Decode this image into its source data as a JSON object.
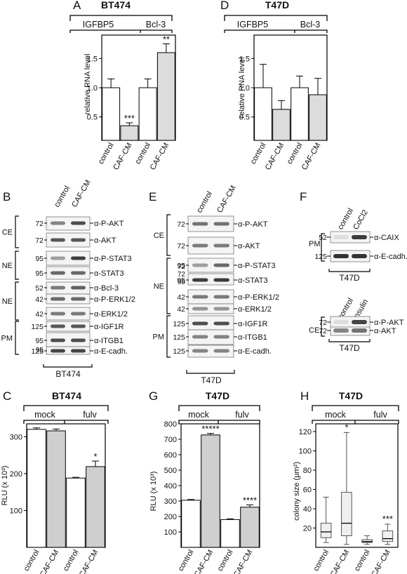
{
  "panels": {
    "A": {
      "letter": "A",
      "title": "BT474",
      "groups": [
        "IGFBP5",
        "Bcl-3"
      ],
      "ylabel": "relative RNA level",
      "yticks": [
        "0.5",
        "1.0",
        "1.5"
      ],
      "categories": [
        "control",
        "CAF-CM",
        "control",
        "CAF-CM"
      ],
      "stars": [
        "",
        "***",
        "",
        "**"
      ]
    },
    "D": {
      "letter": "D",
      "title": "T47D",
      "groups": [
        "IGFBP5",
        "Bcl-3"
      ],
      "ylabel": "relative RNA level",
      "yticks": [
        "0.5",
        "1.0",
        "1.5"
      ],
      "categories": [
        "control",
        "CAF-CM",
        "control",
        "CAF-CM"
      ],
      "stars": [
        "",
        "",
        "",
        ""
      ]
    },
    "B": {
      "letter": "B",
      "cols": [
        "control",
        "CAF-CM"
      ],
      "cell": "BT474",
      "rows": [
        {
          "mw": "72",
          "label": "α-P-AKT"
        },
        {
          "mw": "72",
          "label": "α-AKT"
        },
        {
          "mw": "95",
          "label": "α-P-STAT3"
        },
        {
          "mw": "95",
          "label": "α-STAT3"
        },
        {
          "mw": "52",
          "label": "α-Bcl-3"
        },
        {
          "mw": "42",
          "label": "α-P-ERK1/2"
        },
        {
          "mw": "42",
          "label": "α-ERK1/2"
        },
        {
          "mw": "125",
          "label": "α-IGF1R"
        },
        {
          "mw": "95",
          "label": "α-ITGB1"
        },
        {
          "mw": "125",
          "label": "α-E-cadh."
        }
      ],
      "extra_mw": "95",
      "fractions": [
        "CE",
        "NE",
        "NE",
        "PM"
      ]
    },
    "E": {
      "letter": "E",
      "cols": [
        "control",
        "CAF-CM"
      ],
      "cell": "T47D",
      "rows": [
        {
          "mw": "72",
          "label": "α-P-AKT"
        },
        {
          "mw": "72",
          "label": "α-AKT"
        },
        {
          "mw": "95",
          "label": "α-P-STAT3"
        },
        {
          "mw": "95",
          "label": "α-STAT3"
        },
        {
          "mw": "42",
          "label": "α-P-ERK1/2"
        },
        {
          "mw": "42",
          "label": "α-ERK1/2"
        },
        {
          "mw": "125",
          "label": "α-IGF1R"
        },
        {
          "mw": "125",
          "label": "α-ITGB1"
        },
        {
          "mw": "125",
          "label": "α-E-cadh."
        }
      ],
      "extra_mw": [
        "72",
        "72",
        "95"
      ],
      "fractions": [
        "CE",
        "NE",
        "PM"
      ]
    },
    "F": {
      "letter": "F",
      "top": {
        "cols": [
          "control",
          "CoCl2"
        ],
        "rows": [
          {
            "mw": "52",
            "label": "α-CAIX"
          },
          {
            "mw": "125",
            "label": "α-E-cadh."
          }
        ],
        "fraction": "PM",
        "cell": "T47D"
      },
      "bottom": {
        "cols": [
          "control",
          "insulin"
        ],
        "rows": [
          {
            "mw": "72",
            "label": "α-P-AKT"
          },
          {
            "mw": "72",
            "label": "α-AKT"
          }
        ],
        "fraction": "CE",
        "cell": "T47D"
      }
    },
    "C": {
      "letter": "C",
      "title": "BT474",
      "groups": [
        "mock",
        "fulv"
      ],
      "ylabel": "RLU (x 10³)",
      "yticks": [
        "100",
        "200",
        "300"
      ],
      "categories": [
        "control",
        "CAF-CM",
        "control",
        "CAF-CM"
      ],
      "stars": [
        "",
        "",
        "",
        "*"
      ]
    },
    "G": {
      "letter": "G",
      "title": "T47D",
      "groups": [
        "mock",
        "fulv"
      ],
      "ylabel": "RLU (x 10³)",
      "yticks": [
        "100",
        "200",
        "300",
        "400",
        "500",
        "600",
        "700",
        "800"
      ],
      "categories": [
        "control",
        "CAF-CM",
        "control",
        "CAF-CM"
      ],
      "stars": [
        "",
        "*****",
        "",
        "****"
      ]
    },
    "H": {
      "letter": "H",
      "title": "T47D",
      "groups": [
        "mock",
        "fulv"
      ],
      "ylabel": "colony size (μm²)",
      "yticks": [
        "20",
        "40",
        "60",
        "80",
        "100",
        "120"
      ],
      "categories": [
        "control",
        "CAF-CM",
        "control",
        "CAF-CM"
      ],
      "stars": [
        "",
        "*",
        "",
        "***"
      ]
    }
  },
  "chart_data": [
    {
      "panel": "A",
      "type": "bar",
      "title": "BT474",
      "ylabel": "relative RNA level",
      "ylim": [
        0.1,
        1.9
      ],
      "categories": [
        "control",
        "CAF-CM",
        "control",
        "CAF-CM"
      ],
      "values": [
        1.0,
        0.35,
        1.0,
        1.6
      ],
      "errors": [
        0.15,
        0.05,
        0.15,
        0.15
      ],
      "fills": [
        "#ffffff",
        "#dcdcdc",
        "#ffffff",
        "#dcdcdc"
      ]
    },
    {
      "panel": "D",
      "type": "bar",
      "title": "T47D",
      "ylabel": "relative RNA level",
      "ylim": [
        0.1,
        1.9
      ],
      "categories": [
        "control",
        "CAF-CM",
        "control",
        "CAF-CM"
      ],
      "values": [
        1.0,
        0.63,
        1.0,
        0.88
      ],
      "errors": [
        0.4,
        0.15,
        0.2,
        0.28
      ],
      "fills": [
        "#ffffff",
        "#dcdcdc",
        "#ffffff",
        "#dcdcdc"
      ]
    },
    {
      "panel": "C",
      "type": "bar",
      "title": "BT474",
      "ylabel": "RLU (x 10³)",
      "ylim": [
        0,
        335
      ],
      "categories": [
        "control",
        "CAF-CM",
        "control",
        "CAF-CM"
      ],
      "values": [
        320,
        316,
        188,
        219
      ],
      "errors": [
        4,
        5,
        2,
        15
      ],
      "fills": [
        "#ffffff",
        "#cfcfcf",
        "#ffffff",
        "#cfcfcf"
      ]
    },
    {
      "panel": "G",
      "type": "bar",
      "title": "T47D",
      "ylabel": "RLU (x 10³)",
      "ylim": [
        0,
        800
      ],
      "categories": [
        "control",
        "CAF-CM",
        "control",
        "CAF-CM"
      ],
      "values": [
        305,
        728,
        180,
        260
      ],
      "errors": [
        5,
        10,
        5,
        15
      ],
      "fills": [
        "#ffffff",
        "#cfcfcf",
        "#ffffff",
        "#cfcfcf"
      ]
    },
    {
      "panel": "H",
      "type": "box",
      "title": "T47D",
      "ylabel": "colony size (μm²)",
      "ylim": [
        0,
        128
      ],
      "categories": [
        "control",
        "CAF-CM",
        "control",
        "CAF-CM"
      ],
      "boxes": [
        {
          "min": 5,
          "q1": 10,
          "median": 16,
          "q3": 25,
          "max": 52
        },
        {
          "min": 3,
          "q1": 12,
          "median": 25,
          "q3": 57,
          "max": 119
        },
        {
          "min": 3,
          "q1": 5,
          "median": 6,
          "q3": 8,
          "max": 12
        },
        {
          "min": 3,
          "q1": 6,
          "median": 9,
          "q3": 17,
          "max": 24
        }
      ],
      "fills": [
        "#efefef",
        "#efefef",
        "#efefef",
        "#efefef"
      ]
    }
  ]
}
